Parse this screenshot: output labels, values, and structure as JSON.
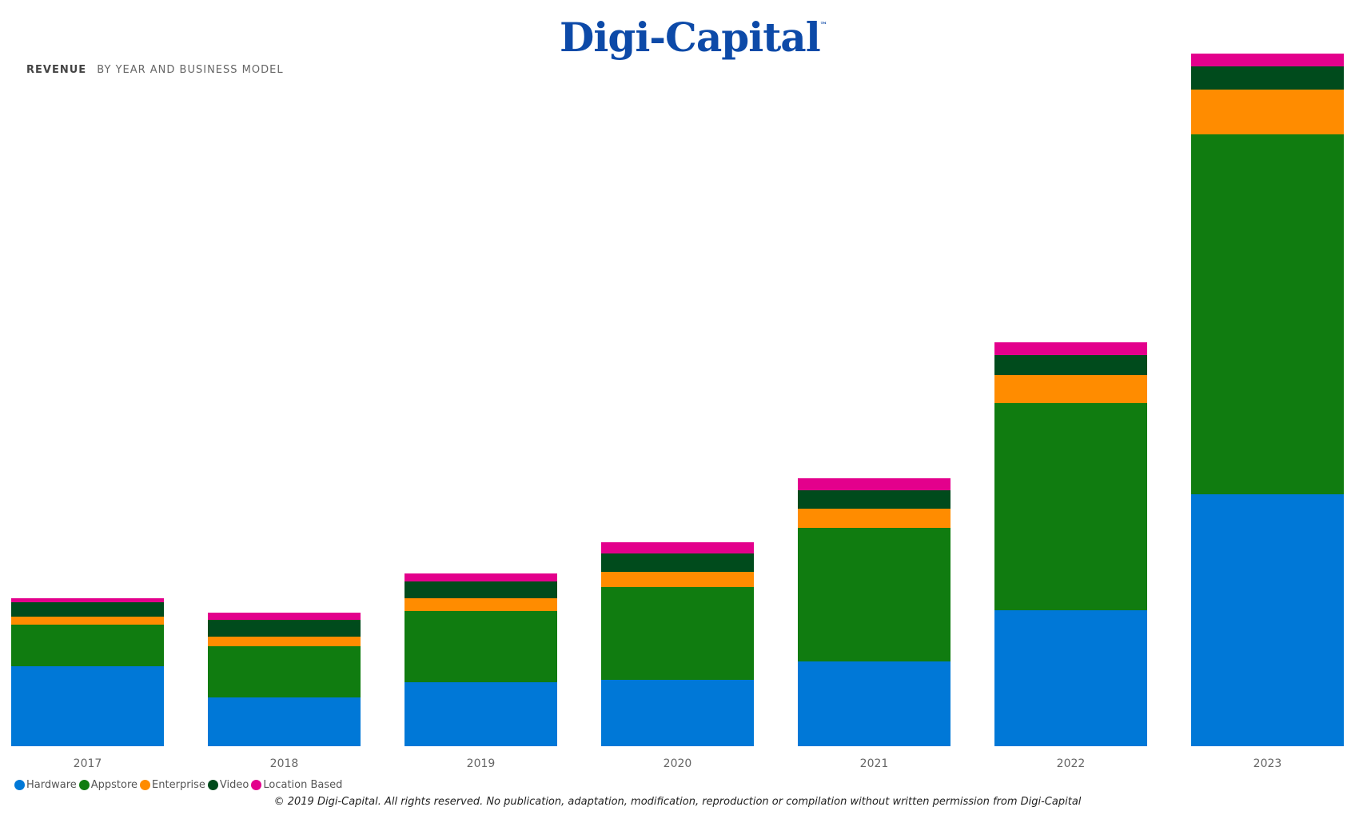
{
  "header": {
    "logo_text": "Digi-Capital",
    "logo_mark": "™",
    "title": "REVENUE",
    "subtitle": "BY YEAR AND BUSINESS MODEL"
  },
  "footer": {
    "copyright": "© 2019 Digi-Capital. All rights reserved. No publication, adaptation, modification, reproduction or compilation without written permission from Digi-Capital"
  },
  "chart_data": {
    "type": "bar",
    "stacked": true,
    "title": "REVENUE",
    "subtitle": "BY YEAR AND BUSINESS MODEL",
    "xlabel": "",
    "ylabel": "",
    "y_axis_visible": false,
    "grid": false,
    "legend_position": "bottom-left",
    "categories": [
      "2017",
      "2018",
      "2019",
      "2020",
      "2021",
      "2022",
      "2023"
    ],
    "series": [
      {
        "name": "Hardware",
        "color": "#0078d7",
        "values": [
          100,
          61,
          80,
          83,
          106,
          170,
          315
        ]
      },
      {
        "name": "Appstore",
        "color": "#107c10",
        "values": [
          52,
          64,
          89,
          116,
          167,
          259,
          450
        ]
      },
      {
        "name": "Enterprise",
        "color": "#ff8c00",
        "values": [
          10,
          12,
          16,
          19,
          24,
          35,
          56
        ]
      },
      {
        "name": "Video",
        "color": "#004b1c",
        "values": [
          18,
          21,
          21,
          23,
          23,
          25,
          29
        ]
      },
      {
        "name": "Location Based",
        "color": "#e3008c",
        "values": [
          5,
          9,
          10,
          14,
          15,
          16,
          16
        ]
      }
    ],
    "ylim": [
      0,
      866
    ]
  }
}
